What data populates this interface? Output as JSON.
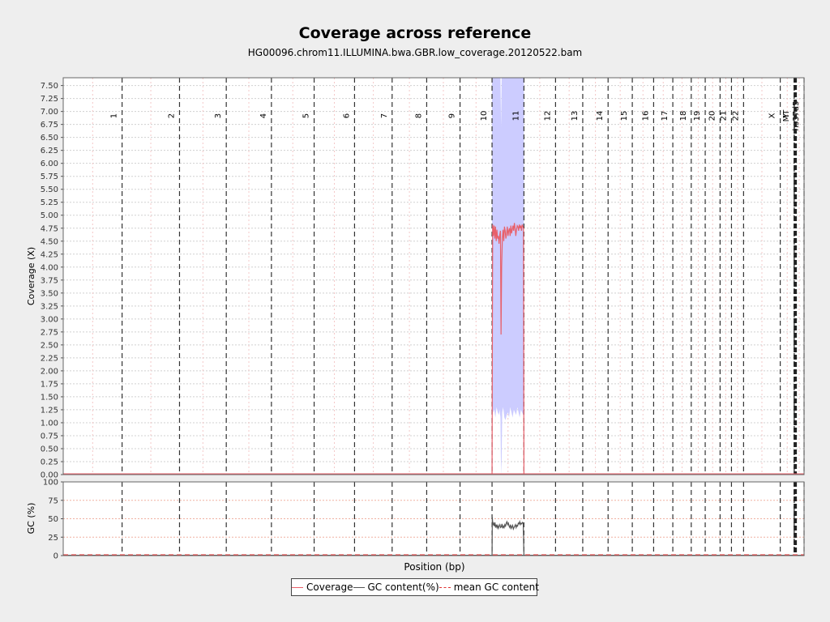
{
  "chart_data": {
    "type": "line",
    "title": "Coverage across reference",
    "subtitle": "HG00096.chrom11.ILLUMINA.bwa.GBR.low_coverage.20120522.bam",
    "xlabel": "Position (bp)",
    "top_panel": {
      "ylabel": "Coverage (X)",
      "ylim": [
        0,
        7.65
      ],
      "yticks": [
        "0.00",
        "0.25",
        "0.50",
        "0.75",
        "1.00",
        "1.25",
        "1.50",
        "1.75",
        "2.00",
        "2.25",
        "2.50",
        "2.75",
        "3.00",
        "3.25",
        "3.50",
        "3.75",
        "4.00",
        "4.25",
        "4.50",
        "4.75",
        "5.00",
        "5.25",
        "5.50",
        "5.75",
        "6.00",
        "6.25",
        "6.50",
        "6.75",
        "7.00",
        "7.25",
        "7.50"
      ],
      "grid": true
    },
    "bottom_panel": {
      "ylabel": "GC (%)",
      "ylim": [
        0,
        100
      ],
      "yticks": [
        "0",
        "25",
        "50",
        "75",
        "100"
      ],
      "grid": true
    },
    "chromosomes": [
      {
        "name": "1",
        "start": 0,
        "end": 249250621
      },
      {
        "name": "2",
        "start": 249250621,
        "end": 492449994
      },
      {
        "name": "3",
        "start": 492449994,
        "end": 690472424
      },
      {
        "name": "4",
        "start": 690472424,
        "end": 881626700
      },
      {
        "name": "5",
        "start": 881626700,
        "end": 1062541960
      },
      {
        "name": "6",
        "start": 1062541960,
        "end": 1233657027
      },
      {
        "name": "7",
        "start": 1233657027,
        "end": 1392795690
      },
      {
        "name": "8",
        "start": 1392795690,
        "end": 1539159712
      },
      {
        "name": "9",
        "start": 1539159712,
        "end": 1680373143
      },
      {
        "name": "10",
        "start": 1680373143,
        "end": 1815907890
      },
      {
        "name": "11",
        "start": 1815907890,
        "end": 1950914406
      },
      {
        "name": "12",
        "start": 1950914406,
        "end": 2084766301
      },
      {
        "name": "13",
        "start": 2084766301,
        "end": 2199936179
      },
      {
        "name": "14",
        "start": 2199936179,
        "end": 2307285719
      },
      {
        "name": "15",
        "start": 2307285719,
        "end": 2409817111
      },
      {
        "name": "16",
        "start": 2409817111,
        "end": 2500171864
      },
      {
        "name": "17",
        "start": 2500171864,
        "end": 2581367074
      },
      {
        "name": "18",
        "start": 2581367074,
        "end": 2659444322
      },
      {
        "name": "19",
        "start": 2659444322,
        "end": 2718573305
      },
      {
        "name": "20",
        "start": 2718573305,
        "end": 2781598825
      },
      {
        "name": "21",
        "start": 2781598825,
        "end": 2829728720
      },
      {
        "name": "22",
        "start": 2829728720,
        "end": 2881033286
      },
      {
        "name": "X",
        "start": 2881033286,
        "end": 3036303846
      },
      {
        "name": "Y",
        "start": 3036303846,
        "end": 3095677412
      },
      {
        "name": "MT",
        "start": 3095677412,
        "end": 3095693981
      },
      {
        "name": "hs37d5",
        "start": 3095693981,
        "end": 3137161264
      }
    ],
    "x_max": 3137161264,
    "contig_cluster": {
      "start": 3095693981,
      "end": 3101000000,
      "label": "GL000xxx"
    },
    "series": [
      {
        "name": "Coverage",
        "color": "#e8606a",
        "x": [
          1815907890,
          1818500000,
          1821500000,
          1824500000,
          1827500000,
          1830500000,
          1833500000,
          1836500000,
          1839500000,
          1842500000,
          1845500000,
          1848500000,
          1851500000,
          1854000000,
          1856500000,
          1859500000,
          1862500000,
          1865500000,
          1868500000,
          1871500000,
          1874500000,
          1877500000,
          1880500000,
          1883500000,
          1886500000,
          1889500000,
          1892500000,
          1895500000,
          1898500000,
          1901500000,
          1904500000,
          1907500000,
          1910500000,
          1913500000,
          1916500000,
          1919500000,
          1922500000,
          1925500000,
          1928500000,
          1931500000,
          1934500000,
          1937500000,
          1940500000,
          1943500000,
          1946500000,
          1949000000,
          1950914406
        ],
        "y": [
          0,
          4.82,
          4.6,
          4.8,
          4.55,
          4.78,
          4.5,
          4.72,
          4.55,
          4.6,
          4.45,
          4.62,
          4.7,
          2.7,
          4.0,
          4.55,
          4.72,
          4.5,
          4.78,
          4.7,
          4.55,
          4.65,
          4.78,
          4.6,
          4.7,
          4.75,
          4.6,
          4.8,
          4.65,
          4.72,
          4.8,
          4.7,
          4.85,
          4.75,
          4.6,
          4.72,
          4.8,
          4.78,
          4.7,
          4.82,
          4.75,
          4.8,
          4.7,
          4.82,
          4.78,
          4.75,
          0
        ]
      },
      {
        "name": "GC content(%)",
        "color": "#555555",
        "x": [
          1815907890,
          1817000000,
          1819000000,
          1822000000,
          1825000000,
          1828000000,
          1831000000,
          1834000000,
          1837000000,
          1840000000,
          1843000000,
          1846000000,
          1849000000,
          1852000000,
          1855000000,
          1858000000,
          1861000000,
          1864000000,
          1867000000,
          1870000000,
          1873000000,
          1876000000,
          1879000000,
          1882000000,
          1885000000,
          1888000000,
          1891000000,
          1894000000,
          1897000000,
          1900000000,
          1903000000,
          1906000000,
          1909000000,
          1912000000,
          1915000000,
          1918000000,
          1921000000,
          1924000000,
          1927000000,
          1930000000,
          1933000000,
          1936000000,
          1939000000,
          1942000000,
          1945000000,
          1948000000,
          1950914406
        ],
        "y": [
          0,
          52,
          42,
          44,
          40,
          45,
          38,
          42,
          38,
          41,
          37,
          40,
          42,
          38,
          39,
          43,
          37,
          40,
          38,
          42,
          40,
          44,
          46,
          42,
          44,
          40,
          38,
          42,
          37,
          39,
          41,
          36,
          38,
          40,
          42,
          38,
          41,
          40,
          44,
          43,
          46,
          42,
          44,
          43,
          45,
          44,
          0
        ]
      },
      {
        "name": "mean GC content",
        "color": "#e03030",
        "value": 0.5
      }
    ],
    "coverage_band": {
      "color": "#ccccff",
      "x": [
        1815907890,
        1820000000,
        1825000000,
        1830000000,
        1835000000,
        1840000000,
        1845000000,
        1848000000,
        1851500000,
        1854000000,
        1856500000,
        1859000000,
        1863000000,
        1868000000,
        1873000000,
        1878000000,
        1883000000,
        1888000000,
        1893000000,
        1898000000,
        1903000000,
        1908000000,
        1913000000,
        1918000000,
        1923000000,
        1928000000,
        1933000000,
        1938000000,
        1943000000,
        1948000000,
        1950914406
      ],
      "upper": [
        7.65,
        7.65,
        7.65,
        7.65,
        7.65,
        7.65,
        7.65,
        7.65,
        7.65,
        6.7,
        7.65,
        7.65,
        7.65,
        7.65,
        7.65,
        7.65,
        7.65,
        7.65,
        7.65,
        7.65,
        7.65,
        7.65,
        7.65,
        7.65,
        7.65,
        7.65,
        7.65,
        7.65,
        7.65,
        7.65,
        7.65
      ],
      "lower": [
        1.15,
        1.2,
        1.25,
        1.1,
        1.3,
        1.2,
        1.15,
        1.25,
        1.1,
        0.0,
        0.3,
        1.2,
        1.3,
        1.1,
        1.05,
        1.15,
        1.2,
        1.1,
        1.3,
        1.2,
        1.1,
        1.25,
        1.2,
        1.15,
        1.3,
        1.2,
        1.1,
        1.25,
        1.2,
        1.15,
        1.1
      ]
    },
    "legend": {
      "placement": "bottom",
      "items": [
        {
          "label": "Coverage",
          "style": "solid",
          "color": "#e8606a"
        },
        {
          "label": "GC content(%)",
          "style": "solid",
          "color": "#555555"
        },
        {
          "label": "mean GC content",
          "style": "dashed",
          "color": "#e03030"
        }
      ]
    }
  }
}
